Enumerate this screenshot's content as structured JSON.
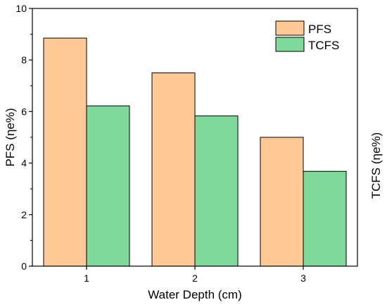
{
  "chart_data": {
    "type": "bar",
    "categories": [
      "1",
      "2",
      "3"
    ],
    "series": [
      {
        "name": "PFS",
        "values": [
          8.85,
          7.5,
          5.0
        ],
        "color": "#FFC996"
      },
      {
        "name": "TCFS",
        "values": [
          6.22,
          5.83,
          3.68
        ],
        "color": "#7FD99A"
      }
    ],
    "xlabel": "Water Depth (cm)",
    "ylabel": "PFS (ηe%)",
    "ylabel_right": "TCFS (ηe%)",
    "ylim": [
      0,
      10
    ],
    "yticks": [
      "0",
      "2",
      "4",
      "6",
      "8",
      "10"
    ],
    "grid": false,
    "legend_position": "top-right"
  }
}
